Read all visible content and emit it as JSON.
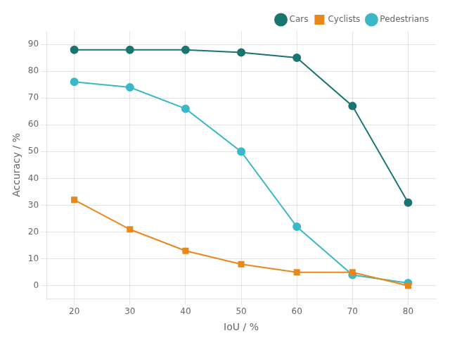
{
  "chart_data": {
    "type": "line",
    "xlabel": "IoU / %",
    "ylabel": "Accuracy / %",
    "x": [
      20,
      30,
      40,
      50,
      60,
      70,
      80
    ],
    "series": [
      {
        "name": "Cars",
        "color": "#1a7570",
        "marker": "circle",
        "values": [
          88,
          88,
          88,
          87,
          85,
          67,
          31
        ]
      },
      {
        "name": "Cyclists",
        "color": "#e8881a",
        "marker": "square",
        "values": [
          32,
          21,
          13,
          8,
          5,
          5,
          0
        ]
      },
      {
        "name": "Pedestrians",
        "color": "#3ab8c8",
        "marker": "circle",
        "values": [
          76,
          74,
          66,
          50,
          22,
          4,
          1
        ]
      }
    ],
    "xlim": [
      15,
      85
    ],
    "ylim": [
      -5,
      95
    ],
    "xticks": [
      20,
      30,
      40,
      50,
      60,
      70,
      80
    ],
    "yticks": [
      0,
      10,
      20,
      30,
      40,
      50,
      60,
      70,
      80,
      90
    ],
    "grid": true,
    "legend": "upper right"
  }
}
